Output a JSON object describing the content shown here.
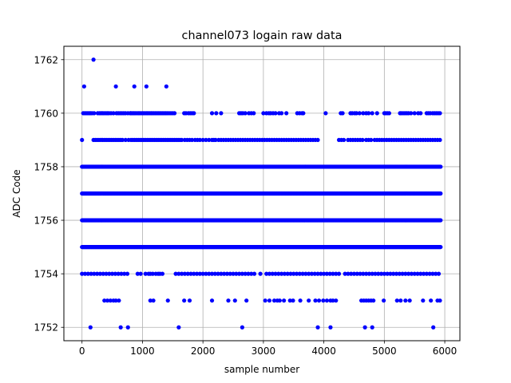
{
  "chart_data": {
    "type": "scatter",
    "title": "channel073 logain raw data",
    "xlabel": "sample number",
    "ylabel": "ADC Code",
    "xlim": [
      -300,
      6250
    ],
    "ylim": [
      1751.5,
      1762.5
    ],
    "x_ticks": [
      0,
      1000,
      2000,
      3000,
      4000,
      5000,
      6000
    ],
    "y_ticks": [
      1752,
      1754,
      1756,
      1758,
      1760,
      1762
    ],
    "grid": true,
    "marker_color": "#0000ff",
    "x_range_of_samples": [
      0,
      5935
    ],
    "levels": [
      {
        "y": 1762,
        "x": [
          190
        ]
      },
      {
        "y": 1761,
        "x": [
          35,
          560,
          865,
          1065,
          1395
        ]
      },
      {
        "y": 1760,
        "x": [
          20,
          45,
          70,
          95,
          120,
          140,
          165,
          200,
          260,
          290,
          315,
          340,
          365,
          395,
          420,
          445,
          480,
          520,
          570,
          600,
          630,
          660,
          690,
          720,
          760,
          800,
          800,
          820,
          840,
          860,
          880,
          905,
          930,
          950,
          975,
          1000,
          1020,
          1045,
          1070,
          1090,
          1115,
          1140,
          1160,
          1185,
          1210,
          1235,
          1260,
          1285,
          1310,
          1335,
          1360,
          1385,
          1410,
          1440,
          1470,
          1500,
          1530,
          1690,
          1720,
          1760,
          1790,
          1820,
          1850,
          2150,
          2220,
          2300,
          2600,
          2630,
          2660,
          2700,
          2760,
          2800,
          2840,
          3000,
          3050,
          3090,
          3120,
          3160,
          3200,
          3260,
          3300,
          3380,
          3560,
          3600,
          3640,
          3660,
          4030,
          4280,
          4310,
          4440,
          4470,
          4510,
          4540,
          4590,
          4650,
          4700,
          4740,
          4800,
          4880,
          5000,
          5020,
          5050,
          5080,
          5260,
          5280,
          5310,
          5340,
          5370,
          5400,
          5440,
          5500,
          5560,
          5600,
          5700,
          5730,
          5760,
          5800,
          5830,
          5860,
          5890,
          5920
        ]
      },
      {
        "y": 1759,
        "x": [
          0,
          190,
          220,
          250,
          280,
          310,
          340,
          370,
          400,
          430,
          460,
          490,
          520,
          550,
          580,
          610,
          640,
          670,
          720,
          770,
          810,
          840,
          870,
          900,
          930,
          960,
          990,
          1020,
          1050,
          1080,
          1110,
          1140,
          1170,
          1200,
          1230,
          1260,
          1290,
          1320,
          1350,
          1380,
          1410,
          1440,
          1470,
          1500,
          1530,
          1560,
          1590,
          1620,
          1650,
          1700,
          1740,
          1780,
          1820,
          1870,
          1910,
          1950,
          2000,
          2050,
          2100,
          2150,
          2180,
          2210,
          2260,
          2300,
          2340,
          2380,
          2420,
          2460,
          2500,
          2540,
          2580,
          2620,
          2660,
          2700,
          2740,
          2780,
          2820,
          2860,
          2900,
          2940,
          2980,
          3020,
          3060,
          3100,
          3140,
          3180,
          3220,
          3260,
          3300,
          3340,
          3380,
          3420,
          3460,
          3500,
          3540,
          3580,
          3620,
          3660,
          3700,
          3740,
          3780,
          3820,
          3860,
          3900,
          4250,
          4290,
          4330,
          4400,
          4440,
          4480,
          4520,
          4560,
          4600,
          4640,
          4700,
          4740,
          4780,
          4840,
          4880,
          4920,
          4960,
          5000,
          5040,
          5080,
          5120,
          5160,
          5200,
          5240,
          5280,
          5320,
          5360,
          5400,
          5440,
          5480,
          5520,
          5560,
          5600,
          5640,
          5680,
          5720,
          5760,
          5800,
          5840,
          5880,
          5920
        ]
      },
      {
        "y": 1754,
        "x": [
          0,
          50,
          100,
          150,
          200,
          250,
          300,
          350,
          400,
          450,
          500,
          550,
          600,
          650,
          700,
          750,
          920,
          970,
          1050,
          1100,
          1130,
          1170,
          1220,
          1260,
          1290,
          1330,
          1550,
          1600,
          1650,
          1700,
          1750,
          1800,
          1850,
          1900,
          1950,
          2000,
          2050,
          2100,
          2150,
          2200,
          2250,
          2300,
          2350,
          2400,
          2450,
          2500,
          2550,
          2600,
          2650,
          2700,
          2750,
          2800,
          2850,
          2950,
          3050,
          3100,
          3150,
          3200,
          3250,
          3300,
          3350,
          3400,
          3450,
          3500,
          3550,
          3600,
          3650,
          3700,
          3750,
          3800,
          3850,
          3900,
          3950,
          4000,
          4050,
          4100,
          4150,
          4200,
          4250,
          4350,
          4400,
          4450,
          4500,
          4550,
          4600,
          4650,
          4700,
          4750,
          4800,
          4850,
          4900,
          4950,
          5000,
          5050,
          5100,
          5150,
          5200,
          5250,
          5300,
          5350,
          5400,
          5450,
          5500,
          5550,
          5600,
          5650,
          5700,
          5750,
          5800,
          5850,
          5900
        ]
      },
      {
        "y": 1753,
        "x": [
          370,
          420,
          470,
          520,
          560,
          610,
          1130,
          1180,
          1420,
          1690,
          1780,
          2150,
          2420,
          2530,
          2720,
          3030,
          3100,
          3180,
          3230,
          3270,
          3340,
          3440,
          3490,
          3610,
          3750,
          3860,
          3920,
          3990,
          4050,
          4110,
          4150,
          4200,
          4620,
          4660,
          4700,
          4740,
          4780,
          4820,
          4990,
          5210,
          5270,
          5350,
          5420,
          5640,
          5770,
          5880,
          5920
        ]
      },
      {
        "y": 1752,
        "x": [
          140,
          640,
          760,
          1600,
          2650,
          3900,
          4110,
          4680,
          4800,
          5810
        ]
      }
    ],
    "dense_levels": [
      1755,
      1756,
      1757,
      1758
    ]
  }
}
